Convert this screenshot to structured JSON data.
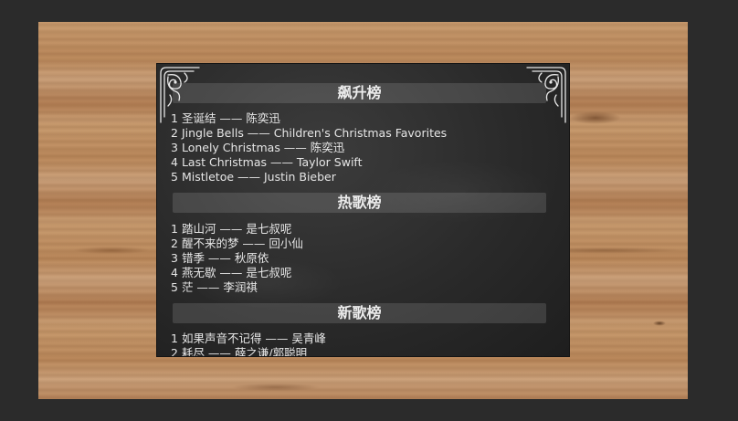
{
  "sections": [
    {
      "title": "飙升榜",
      "items": [
        {
          "rank": "1",
          "text": "圣诞结 —— 陈奕迅"
        },
        {
          "rank": "2",
          "text": "Jingle Bells —— Children's Christmas Favorites"
        },
        {
          "rank": "3",
          "text": "Lonely Christmas —— 陈奕迅"
        },
        {
          "rank": "4",
          "text": "Last Christmas —— Taylor Swift"
        },
        {
          "rank": "5",
          "text": "Mistletoe —— Justin Bieber"
        }
      ]
    },
    {
      "title": "热歌榜",
      "items": [
        {
          "rank": "1",
          "text": "踏山河 —— 是七叔呢"
        },
        {
          "rank": "2",
          "text": "醒不来的梦 —— 回小仙"
        },
        {
          "rank": "3",
          "text": "错季 —— 秋原依"
        },
        {
          "rank": "4",
          "text": "燕无歇 —— 是七叔呢"
        },
        {
          "rank": "5",
          "text": "茫 —— 李润祺"
        }
      ]
    },
    {
      "title": "新歌榜",
      "items": [
        {
          "rank": "1",
          "text": "如果声音不记得 —— 吴青峰"
        },
        {
          "rank": "2",
          "text": "耗尽 —— 薛之谦/郭聪明"
        }
      ]
    }
  ]
}
